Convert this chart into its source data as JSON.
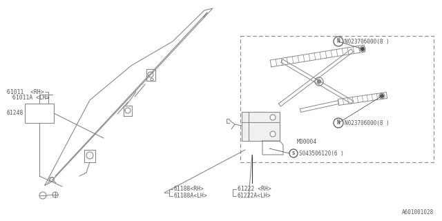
{
  "bg_color": "#ffffff",
  "line_color": "#888888",
  "text_color": "#555555",
  "diagram_id": "A601001028",
  "labels": {
    "61011_rh": "61011  <RH>",
    "61011a_lh": "61011A <LH>",
    "61248": "61248",
    "N_top": "N023706000(8 )",
    "N_mid": "N023706000(8 )",
    "M00004": "M00004",
    "S_label": "S043506120(6 )",
    "61188_rh": "61188<RH>",
    "61188a_lh": "61188A<LH>",
    "61222_rh": "61222 <RH>",
    "61222a_lh": "61222A<LH>"
  }
}
